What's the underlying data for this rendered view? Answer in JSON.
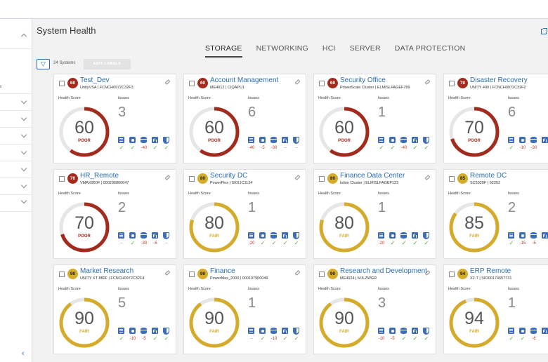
{
  "page": {
    "title": "System Health",
    "tabs": [
      {
        "label": "STORAGE",
        "active": true
      },
      {
        "label": "NETWORKING",
        "active": false
      },
      {
        "label": "HCI",
        "active": false
      },
      {
        "label": "SERVER",
        "active": false
      },
      {
        "label": "DATA PROTECTION",
        "active": false
      }
    ],
    "systems_count": "24 Systems",
    "edit_labels": "EDIT LABELS"
  },
  "sidebar": {
    "fragment_text": "es"
  },
  "labels": {
    "health_score": "Health Score",
    "issues": "Issues"
  },
  "colors": {
    "poor": "#a32b1e",
    "fair": "#d4ab2a",
    "track": "#e6e6e6",
    "link": "#2b6cb0"
  },
  "icons": [
    "storage-icon",
    "configuration-icon",
    "capacity-icon",
    "performance-icon",
    "data-protection-icon"
  ],
  "cards": [
    {
      "name": "Test_Dev",
      "model": "UnityVSA | FCNCH0972C32F3",
      "score": "60",
      "score_value": 60,
      "status": "POOR",
      "issues": "3",
      "values": [
        "✓",
        "✓",
        "-40",
        "✓",
        "✓"
      ]
    },
    {
      "name": "Account Management",
      "model": "ME4012 | CIQAPU1",
      "score": "60",
      "score_value": 60,
      "status": "POOR",
      "issues": "6",
      "values": [
        "-40",
        "-5",
        "-30",
        "–",
        "–"
      ]
    },
    {
      "name": "Security Office",
      "model": "PowerScale Cluster | ELMISLFAGEF789",
      "score": "60",
      "score_value": 60,
      "status": "POOR",
      "issues": "1",
      "values": [
        "✓",
        "✓",
        "-40",
        "✓",
        "✓"
      ]
    },
    {
      "name": "Disaster Recovery",
      "model": "UNITY 400 | FCNCH0972C32F2",
      "score": "70",
      "score_value": 70,
      "status": "POOR",
      "issues": "6",
      "values": [
        "✓",
        "-10",
        "-30",
        "",
        ""
      ]
    },
    {
      "name": "HR_Remote",
      "model": "VMAX950F | 000296800647",
      "score": "70",
      "score_value": 70,
      "status": "POOR",
      "issues": "2",
      "values": [
        "–",
        "✓",
        "-30",
        "-5",
        "–"
      ]
    },
    {
      "name": "Security DC",
      "model": "PowerFlex | SIOLIC1124",
      "score": "80",
      "score_value": 80,
      "status": "FAIR",
      "issues": "1",
      "values": [
        "-20",
        "✓",
        "✓",
        "✓",
        "✓"
      ]
    },
    {
      "name": "Finance Data Center",
      "model": "Isilon Cluster | ELMISLFAGEF123",
      "score": "80",
      "score_value": 80,
      "status": "FAIR",
      "issues": "1",
      "values": [
        "-20",
        "✓",
        "✓",
        "✓",
        "✓"
      ]
    },
    {
      "name": "Remote DC",
      "model": "SC5020F | 92252",
      "score": "85",
      "score_value": 85,
      "status": "FAIR",
      "issues": "2",
      "values": [
        "✓",
        "-15",
        "-5",
        "",
        ""
      ]
    },
    {
      "name": "Market Research",
      "model": "UNITY XT 880F | FCNCH0972C32F4",
      "score": "90",
      "score_value": 90,
      "status": "FAIR",
      "issues": "5",
      "values": [
        "✓",
        "-10",
        "-5",
        "✓",
        "✓"
      ]
    },
    {
      "name": "Finance",
      "model": "PowerMax_2000 | 000197900049",
      "score": "90",
      "score_value": 90,
      "status": "FAIR",
      "issues": "1",
      "values": [
        "–",
        "✓",
        "-10",
        "✓",
        "✓"
      ]
    },
    {
      "name": "Research and Development",
      "model": "ME4024 | MJLZWGR",
      "score": "90",
      "score_value": 90,
      "status": "FAIR",
      "issues": "3",
      "values": [
        "-10",
        "-5",
        "✓",
        "✓",
        "✓"
      ]
    },
    {
      "name": "ERP Remote",
      "model": "X2-T | SIO00174657731",
      "score": "94",
      "score_value": 94,
      "status": "FAIR",
      "issues": "1",
      "values": [
        "✓",
        "✓",
        "-6",
        "",
        ""
      ]
    }
  ]
}
